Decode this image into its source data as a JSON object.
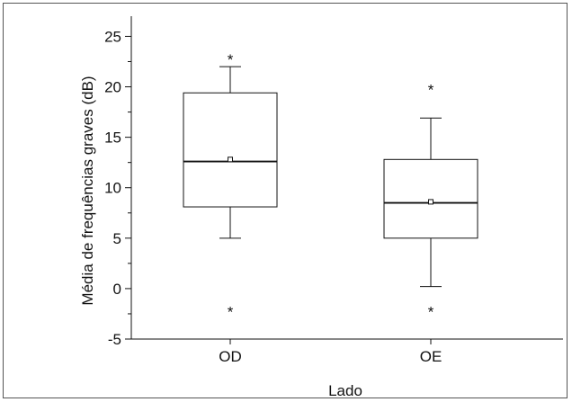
{
  "chart_data": {
    "type": "box",
    "title": "",
    "xlabel": "Lado",
    "ylabel": "Média de frequências graves (dB)",
    "ylim": [
      -5,
      27
    ],
    "yticks": [
      -5,
      0,
      5,
      10,
      15,
      20,
      25
    ],
    "grid": false,
    "categories": [
      "OD",
      "OE"
    ],
    "boxes": [
      {
        "category": "OD",
        "q1": 8.1,
        "median": 12.6,
        "q3": 19.4,
        "mean": 12.8,
        "whisker_low": 5.0,
        "whisker_high": 22.0,
        "outliers": [
          23.0,
          -2.0
        ]
      },
      {
        "category": "OE",
        "q1": 5.0,
        "median": 8.5,
        "q3": 12.8,
        "mean": 8.6,
        "whisker_low": 0.2,
        "whisker_high": 16.9,
        "outliers": [
          20.0,
          -2.0
        ]
      }
    ]
  }
}
